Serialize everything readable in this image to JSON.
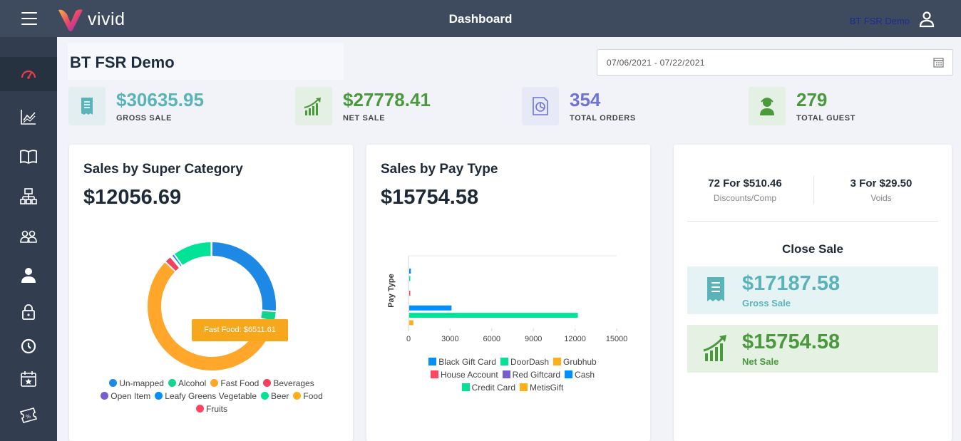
{
  "header": {
    "app_name": "vivid",
    "title": "Dashboard",
    "user_name": "BT FSR Demo"
  },
  "sidebar": {
    "items": [
      {
        "icon": "speedometer-icon",
        "active": true
      },
      {
        "icon": "line-chart-icon"
      },
      {
        "icon": "book-icon"
      },
      {
        "icon": "sitemap-icon"
      },
      {
        "icon": "users-icon"
      },
      {
        "icon": "user-icon"
      },
      {
        "icon": "lock-icon"
      },
      {
        "icon": "clock-icon"
      },
      {
        "icon": "calendar-star-icon"
      },
      {
        "icon": "ticket-percent-icon"
      }
    ]
  },
  "page": {
    "title": "BT FSR Demo",
    "date_range": "07/06/2021 - 07/22/2021"
  },
  "kpis": [
    {
      "value": "$30635.95",
      "label": "GROSS SALE",
      "color": "#5ab3b9",
      "icon": "receipt-icon"
    },
    {
      "value": "$27778.41",
      "label": "NET SALE",
      "color": "#4a9a3d",
      "icon": "growth-chart-icon"
    },
    {
      "value": "354",
      "label": "TOTAL ORDERS",
      "color": "#6d74d6",
      "icon": "pie-document-icon"
    },
    {
      "value": "279",
      "label": "TOTAL GUEST",
      "color": "#4a9a3d",
      "icon": "guest-icon"
    }
  ],
  "super_category": {
    "title": "Sales by Super Category",
    "amount": "$12056.69",
    "tooltip": "Fast Food: $6511.61",
    "legend": [
      {
        "label": "Un-mapped",
        "color": "#1e88e5"
      },
      {
        "label": "Alcohol",
        "color": "#13d38e"
      },
      {
        "label": "Fast Food",
        "color": "#ffa62b"
      },
      {
        "label": "Beverages",
        "color": "#f43f5e"
      },
      {
        "label": "Open Item",
        "color": "#775dd0"
      },
      {
        "label": "Leafy Greens Vegetable",
        "color": "#008ffb"
      },
      {
        "label": "Beer",
        "color": "#00e396"
      },
      {
        "label": "Food",
        "color": "#feb019"
      },
      {
        "label": "Fruits",
        "color": "#ff4560"
      }
    ]
  },
  "pay_type": {
    "title": "Sales by Pay Type",
    "amount": "$15754.58",
    "legend": [
      {
        "label": "Black Gift Card",
        "color": "#008ffb"
      },
      {
        "label": "DoorDash",
        "color": "#00e396"
      },
      {
        "label": "Grubhub",
        "color": "#feb019"
      },
      {
        "label": "House Account",
        "color": "#ff4560"
      },
      {
        "label": "Red Giftcard",
        "color": "#775dd0"
      },
      {
        "label": "Cash",
        "color": "#008ffb"
      },
      {
        "label": "Credit Card",
        "color": "#00e396"
      },
      {
        "label": "MetisGift",
        "color": "#feb019"
      }
    ]
  },
  "chart_data": [
    {
      "type": "pie",
      "title": "Sales by Super Category",
      "categories": [
        "Un-mapped",
        "Alcohol",
        "Fast Food",
        "Beverages",
        "Open Item",
        "Leafy Greens Vegetable",
        "Beer",
        "Food",
        "Fruits"
      ],
      "values": [
        2930,
        290,
        6511.61,
        200,
        40,
        80,
        1100,
        0,
        10
      ],
      "colors": [
        "#1e88e5",
        "#13d38e",
        "#ffa62b",
        "#f43f5e",
        "#775dd0",
        "#008ffb",
        "#00e396",
        "#feb019",
        "#ff4560"
      ],
      "donut": true
    },
    {
      "type": "bar",
      "orientation": "horizontal",
      "title": "Sales by Pay Type",
      "xlabel": "",
      "ylabel": "Pay Type",
      "xlim": [
        0,
        15000
      ],
      "xticks": [
        "0",
        "3000",
        "6000",
        "9000",
        "12000",
        "15000"
      ],
      "categories": [
        "Black Gift Card",
        "DoorDash",
        "Grubhub",
        "House Account",
        "Red Giftcard",
        "Cash",
        "Credit Card",
        "MetisGift"
      ],
      "values": [
        120,
        60,
        0,
        20,
        0,
        3050,
        12150,
        300
      ],
      "colors": [
        "#008ffb",
        "#00e396",
        "#feb019",
        "#ff4560",
        "#775dd0",
        "#008ffb",
        "#00e396",
        "#feb019"
      ]
    }
  ],
  "summary": {
    "discounts_value": "72 For $510.46",
    "discounts_label": "Discounts/Comp",
    "voids_value": "3 For $29.50",
    "voids_label": "Voids",
    "close_sale_title": "Close Sale",
    "gross": {
      "value": "$17187.58",
      "label": "Gross Sale",
      "color": "#5ab3b9",
      "bg": "#e6f3f4"
    },
    "net": {
      "value": "$15754.58",
      "label": "Net Sale",
      "color": "#4a9a3d",
      "bg": "#e4f1e3"
    }
  }
}
